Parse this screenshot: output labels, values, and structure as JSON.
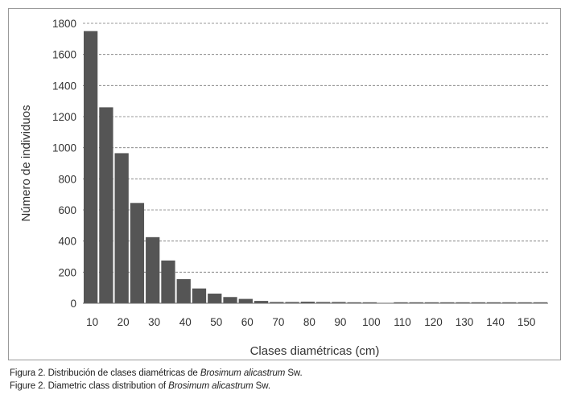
{
  "chart_data": {
    "type": "bar",
    "categories": [
      "10",
      "",
      "20",
      "",
      "30",
      "",
      "40",
      "",
      "50",
      "",
      "60",
      "",
      "70",
      "",
      "80",
      "",
      "90",
      "",
      "100",
      "",
      "110",
      "",
      "120",
      "",
      "130",
      "",
      "140",
      "",
      "150",
      ""
    ],
    "values": [
      1750,
      1260,
      965,
      645,
      425,
      275,
      155,
      95,
      62,
      40,
      28,
      15,
      8,
      8,
      10,
      8,
      8,
      6,
      5,
      0,
      4,
      4,
      4,
      4,
      4,
      4,
      4,
      4,
      4,
      4
    ],
    "xlabel": "Clases diamétricas (cm)",
    "ylabel": "Número de individuos",
    "ylim": [
      0,
      1800
    ],
    "yticks": [
      "0",
      "200",
      "400",
      "600",
      "800",
      "1000",
      "1200",
      "1400",
      "1600",
      "1800"
    ],
    "grid": "horizontal-dashed",
    "bar_color": "#555555"
  },
  "captions": {
    "es_prefix": "Figura 2. Distribución de clases diamétricas de ",
    "es_species": "Brosimum alicastrum",
    "es_suffix": " Sw.",
    "en_prefix": "Figure 2. Diametric class distribution of ",
    "en_species": "Brosimum alicastrum",
    "en_suffix": " Sw."
  }
}
